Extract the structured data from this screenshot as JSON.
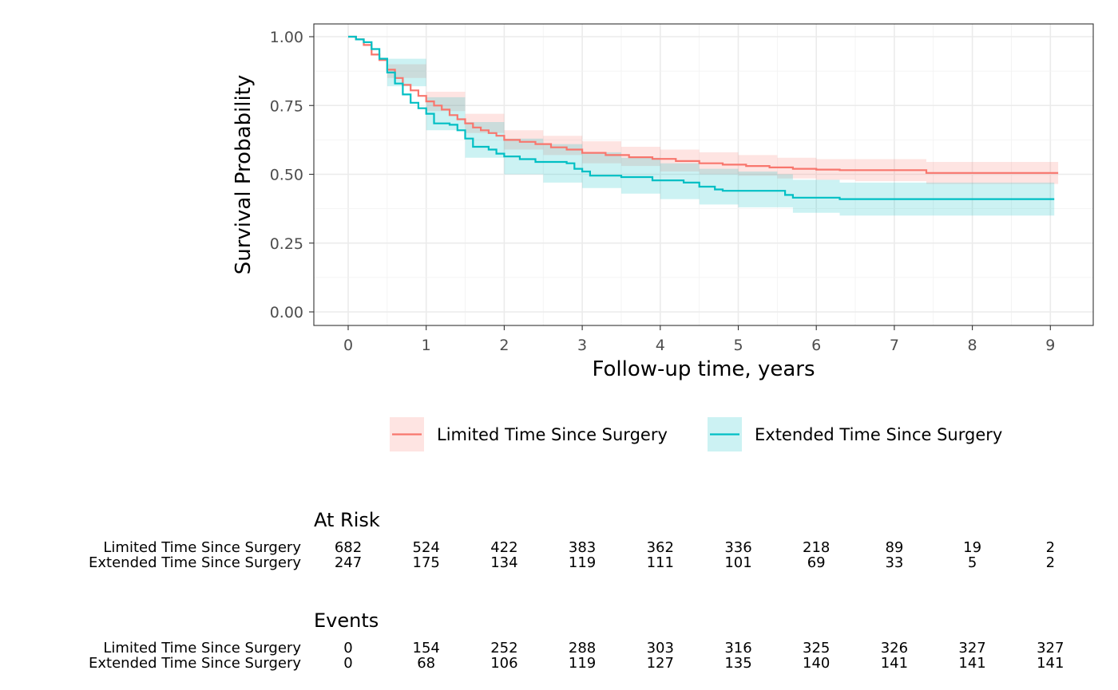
{
  "chart_data": {
    "type": "line",
    "subtype": "kaplan-meier",
    "xlabel": "Follow-up time, years",
    "ylabel": "Survival Probability",
    "xlim": [
      0,
      9
    ],
    "ylim": [
      0,
      1
    ],
    "x_ticks": [
      "0",
      "1",
      "2",
      "3",
      "4",
      "5",
      "6",
      "7",
      "8",
      "9"
    ],
    "y_ticks": [
      "0.00",
      "0.25",
      "0.50",
      "0.75",
      "1.00"
    ],
    "grid": true,
    "legend_position": "bottom",
    "series": [
      {
        "name": "Limited Time Since Surgery",
        "color": "#F8766D",
        "band_color": "#F8766D",
        "points": [
          [
            0,
            1.0
          ],
          [
            0.1,
            0.99
          ],
          [
            0.2,
            0.97
          ],
          [
            0.3,
            0.935
          ],
          [
            0.4,
            0.915
          ],
          [
            0.5,
            0.88
          ],
          [
            0.6,
            0.85
          ],
          [
            0.7,
            0.825
          ],
          [
            0.8,
            0.805
          ],
          [
            0.9,
            0.785
          ],
          [
            1.0,
            0.765
          ],
          [
            1.1,
            0.75
          ],
          [
            1.2,
            0.735
          ],
          [
            1.3,
            0.715
          ],
          [
            1.4,
            0.7
          ],
          [
            1.5,
            0.685
          ],
          [
            1.6,
            0.67
          ],
          [
            1.7,
            0.66
          ],
          [
            1.8,
            0.65
          ],
          [
            1.9,
            0.64
          ],
          [
            2.0,
            0.625
          ],
          [
            2.2,
            0.618
          ],
          [
            2.4,
            0.61
          ],
          [
            2.6,
            0.598
          ],
          [
            2.8,
            0.59
          ],
          [
            3.0,
            0.578
          ],
          [
            3.3,
            0.57
          ],
          [
            3.6,
            0.562
          ],
          [
            3.9,
            0.556
          ],
          [
            4.2,
            0.548
          ],
          [
            4.5,
            0.54
          ],
          [
            4.8,
            0.535
          ],
          [
            5.1,
            0.53
          ],
          [
            5.4,
            0.525
          ],
          [
            5.7,
            0.52
          ],
          [
            6.0,
            0.517
          ],
          [
            6.3,
            0.515
          ],
          [
            7.0,
            0.515
          ],
          [
            7.4,
            0.515
          ],
          [
            7.41,
            0.505
          ],
          [
            9.1,
            0.505
          ]
        ],
        "lower": [
          [
            0,
            1.0
          ],
          [
            0.5,
            0.85
          ],
          [
            1.0,
            0.73
          ],
          [
            1.5,
            0.65
          ],
          [
            2.0,
            0.59
          ],
          [
            2.5,
            0.57
          ],
          [
            3.0,
            0.54
          ],
          [
            3.5,
            0.53
          ],
          [
            4.0,
            0.51
          ],
          [
            4.5,
            0.5
          ],
          [
            5.0,
            0.495
          ],
          [
            5.5,
            0.485
          ],
          [
            6.0,
            0.48
          ],
          [
            6.5,
            0.475
          ],
          [
            7.4,
            0.475
          ],
          [
            7.41,
            0.465
          ],
          [
            9.1,
            0.465
          ]
        ],
        "upper": [
          [
            0,
            1.0
          ],
          [
            0.5,
            0.9
          ],
          [
            1.0,
            0.8
          ],
          [
            1.5,
            0.72
          ],
          [
            2.0,
            0.66
          ],
          [
            2.5,
            0.64
          ],
          [
            3.0,
            0.62
          ],
          [
            3.5,
            0.6
          ],
          [
            4.0,
            0.59
          ],
          [
            4.5,
            0.58
          ],
          [
            5.0,
            0.57
          ],
          [
            5.5,
            0.56
          ],
          [
            6.0,
            0.555
          ],
          [
            6.5,
            0.555
          ],
          [
            7.4,
            0.555
          ],
          [
            7.41,
            0.545
          ],
          [
            9.1,
            0.545
          ]
        ]
      },
      {
        "name": "Extended Time Since Surgery",
        "color": "#00BFC4",
        "band_color": "#00BFC4",
        "points": [
          [
            0,
            1.0
          ],
          [
            0.1,
            0.99
          ],
          [
            0.2,
            0.98
          ],
          [
            0.3,
            0.955
          ],
          [
            0.4,
            0.92
          ],
          [
            0.5,
            0.87
          ],
          [
            0.6,
            0.83
          ],
          [
            0.7,
            0.79
          ],
          [
            0.8,
            0.76
          ],
          [
            0.9,
            0.74
          ],
          [
            1.0,
            0.72
          ],
          [
            1.1,
            0.685
          ],
          [
            1.3,
            0.68
          ],
          [
            1.4,
            0.66
          ],
          [
            1.5,
            0.63
          ],
          [
            1.6,
            0.6
          ],
          [
            1.8,
            0.59
          ],
          [
            1.9,
            0.575
          ],
          [
            2.0,
            0.565
          ],
          [
            2.2,
            0.555
          ],
          [
            2.4,
            0.545
          ],
          [
            2.8,
            0.54
          ],
          [
            2.9,
            0.52
          ],
          [
            3.0,
            0.51
          ],
          [
            3.1,
            0.495
          ],
          [
            3.5,
            0.49
          ],
          [
            3.9,
            0.478
          ],
          [
            4.3,
            0.47
          ],
          [
            4.5,
            0.455
          ],
          [
            4.7,
            0.445
          ],
          [
            4.8,
            0.44
          ],
          [
            5.5,
            0.44
          ],
          [
            5.6,
            0.425
          ],
          [
            5.7,
            0.415
          ],
          [
            6.2,
            0.415
          ],
          [
            6.3,
            0.41
          ],
          [
            9.05,
            0.41
          ]
        ],
        "lower": [
          [
            0,
            1.0
          ],
          [
            0.5,
            0.82
          ],
          [
            1.0,
            0.66
          ],
          [
            1.5,
            0.56
          ],
          [
            2.0,
            0.5
          ],
          [
            2.5,
            0.47
          ],
          [
            3.0,
            0.45
          ],
          [
            3.5,
            0.43
          ],
          [
            4.0,
            0.41
          ],
          [
            4.5,
            0.39
          ],
          [
            5.0,
            0.38
          ],
          [
            5.5,
            0.38
          ],
          [
            5.7,
            0.36
          ],
          [
            6.3,
            0.35
          ],
          [
            9.05,
            0.35
          ]
        ],
        "upper": [
          [
            0,
            1.0
          ],
          [
            0.5,
            0.92
          ],
          [
            1.0,
            0.78
          ],
          [
            1.5,
            0.69
          ],
          [
            2.0,
            0.63
          ],
          [
            2.5,
            0.61
          ],
          [
            3.0,
            0.58
          ],
          [
            3.5,
            0.56
          ],
          [
            4.0,
            0.54
          ],
          [
            4.5,
            0.52
          ],
          [
            5.0,
            0.51
          ],
          [
            5.5,
            0.5
          ],
          [
            5.7,
            0.48
          ],
          [
            6.3,
            0.47
          ],
          [
            9.05,
            0.47
          ]
        ]
      }
    ]
  },
  "risk_table": {
    "title": "At Risk",
    "rows": [
      {
        "label": "Limited Time Since Surgery",
        "values": [
          "682",
          "524",
          "422",
          "383",
          "362",
          "336",
          "218",
          "89",
          "19",
          "2"
        ]
      },
      {
        "label": "Extended Time Since Surgery",
        "values": [
          "247",
          "175",
          "134",
          "119",
          "111",
          "101",
          "69",
          "33",
          "5",
          "2"
        ]
      }
    ]
  },
  "events_table": {
    "title": "Events",
    "rows": [
      {
        "label": "Limited Time Since Surgery",
        "values": [
          "0",
          "154",
          "252",
          "288",
          "303",
          "316",
          "325",
          "326",
          "327",
          "327"
        ]
      },
      {
        "label": "Extended Time Since Surgery",
        "values": [
          "0",
          "68",
          "106",
          "119",
          "127",
          "135",
          "140",
          "141",
          "141",
          "141"
        ]
      }
    ]
  }
}
